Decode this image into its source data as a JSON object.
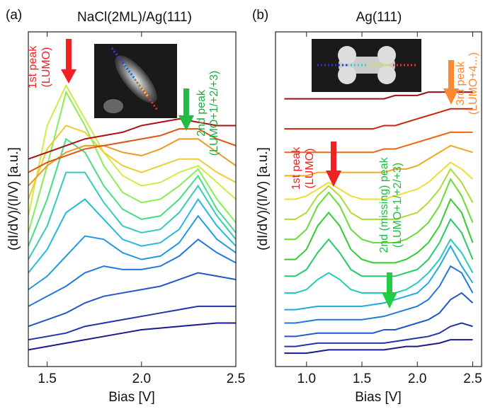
{
  "chart_data": [
    {
      "type": "line",
      "panel_label": "(a)",
      "title": "NaCl(2ML)/Ag(111)",
      "x_label": "Bias [V]",
      "y_label": "(dI/dV)/(I/V) [a.u.]",
      "annotations": [
        "1st peak",
        "(LUMO)",
        "2nd peak",
        "(LUMO+1/+2/+3)"
      ],
      "xlim": [
        1.4,
        2.5
      ],
      "ylim": [
        0,
        100
      ],
      "xticks": [
        1.5,
        {
          "value": 2,
          "label": "2.0"
        },
        2.5
      ],
      "x": [
        1.4,
        1.5,
        1.6,
        1.7,
        1.8,
        1.9,
        2.0,
        2.1,
        2.2,
        2.3,
        2.4,
        2.5
      ],
      "series": [
        {
          "color": "#1a1a8c",
          "values": [
            5,
            6,
            7,
            8,
            9,
            10,
            11,
            11.5,
            12,
            12.5,
            13,
            13
          ]
        },
        {
          "color": "#2233aa",
          "values": [
            8,
            9,
            10,
            12,
            13,
            14,
            15,
            16,
            17,
            18,
            18,
            18
          ]
        },
        {
          "color": "#2255cc",
          "values": [
            12,
            14,
            16,
            19,
            21,
            22,
            23,
            24,
            26,
            28,
            27,
            26
          ]
        },
        {
          "color": "#2277dd",
          "values": [
            18,
            21,
            24,
            28,
            30,
            29,
            29,
            30,
            33,
            38,
            34,
            31
          ]
        },
        {
          "color": "#2299dd",
          "values": [
            23,
            27,
            33,
            39,
            38,
            34,
            32,
            33,
            37,
            45,
            38,
            34
          ]
        },
        {
          "color": "#22bbdd",
          "values": [
            28,
            35,
            46,
            50,
            44,
            38,
            36,
            37,
            41,
            50,
            42,
            36
          ]
        },
        {
          "color": "#33ccbb",
          "values": [
            32,
            42,
            58,
            58,
            49,
            42,
            40,
            41,
            46,
            54,
            45,
            38
          ]
        },
        {
          "color": "#44dd88",
          "values": [
            36,
            50,
            68,
            64,
            54,
            47,
            44,
            45,
            50,
            57,
            47,
            40
          ]
        },
        {
          "color": "#88ee55",
          "values": [
            40,
            60,
            82,
            72,
            60,
            52,
            49,
            50,
            54,
            59,
            50,
            43
          ]
        },
        {
          "color": "#ccee44",
          "values": [
            45,
            72,
            84,
            74,
            64,
            57,
            54,
            55,
            58,
            60,
            55,
            50
          ]
        },
        {
          "color": "#eecc33",
          "values": [
            50,
            65,
            72,
            70,
            64,
            60,
            58,
            60,
            62,
            62,
            58,
            55
          ]
        },
        {
          "color": "#ee9922",
          "values": [
            54,
            60,
            64,
            66,
            66,
            64,
            63,
            65,
            68,
            68,
            64,
            60
          ]
        },
        {
          "color": "#dd5511",
          "values": [
            58,
            61,
            63,
            65,
            66,
            67,
            68,
            69,
            71,
            71,
            68,
            66
          ]
        },
        {
          "color": "#aa1111",
          "values": [
            62,
            64,
            66,
            68,
            69,
            70,
            72,
            73,
            74,
            73,
            72,
            72
          ]
        }
      ]
    },
    {
      "type": "line",
      "panel_label": "(b)",
      "title": "Ag(111)",
      "x_label": "Bias [V]",
      "y_label": "(dI/dV)/(I/V) [a.u.]",
      "annotations": [
        "1st peak",
        "(LUMO)",
        "2nd (missing) peak",
        "(LUMO+1/+2/+3)",
        "3rd peak",
        "(LUMO+4...)"
      ],
      "xlim": [
        0.72,
        2.58
      ],
      "ylim": [
        0,
        100
      ],
      "xticks": [
        {
          "value": 1,
          "label": "1.0"
        },
        1.5,
        {
          "value": 2,
          "label": "2.0"
        },
        2.5
      ],
      "x": [
        0.8,
        0.9,
        1.0,
        1.1,
        1.2,
        1.3,
        1.4,
        1.5,
        1.6,
        1.7,
        1.8,
        1.9,
        2.0,
        2.1,
        2.2,
        2.3,
        2.4,
        2.5
      ],
      "series": [
        {
          "color": "#1a1a8c",
          "values": [
            4,
            4,
            4,
            4.5,
            5,
            5,
            5,
            5,
            5,
            5,
            5.5,
            6,
            6,
            6.5,
            7,
            8,
            8,
            8
          ]
        },
        {
          "color": "#2233aa",
          "values": [
            6,
            6,
            6.5,
            7,
            7,
            7,
            7,
            7,
            7,
            7,
            7.5,
            8,
            8.5,
            9,
            10,
            12,
            13,
            12
          ]
        },
        {
          "color": "#2255cc",
          "values": [
            9,
            9,
            9.5,
            10,
            10,
            10,
            10,
            10,
            10,
            11,
            11,
            12,
            13,
            14,
            16,
            20,
            22,
            19
          ]
        },
        {
          "color": "#2277dd",
          "values": [
            13,
            13,
            13.5,
            14,
            14,
            14,
            14,
            14,
            14.5,
            15,
            16,
            17,
            18,
            20,
            24,
            30,
            28,
            22
          ]
        },
        {
          "color": "#22aadd",
          "values": [
            17,
            17,
            17.5,
            18,
            18,
            18,
            18,
            18,
            18.5,
            19,
            20,
            21,
            22,
            25,
            30,
            36,
            30,
            25
          ]
        },
        {
          "color": "#22ccbb",
          "values": [
            22,
            22,
            23,
            26,
            28,
            26,
            23,
            22,
            22,
            22,
            22,
            23,
            25,
            28,
            32,
            38,
            34,
            28
          ]
        },
        {
          "color": "#22cc66",
          "values": [
            27,
            27,
            29,
            34,
            38,
            34,
            29,
            27,
            27,
            27,
            27,
            28,
            29,
            32,
            37,
            44,
            40,
            32
          ]
        },
        {
          "color": "#33cc33",
          "values": [
            32,
            32,
            35,
            42,
            46,
            42,
            35,
            32,
            31,
            31,
            31,
            32,
            34,
            37,
            42,
            50,
            46,
            37
          ]
        },
        {
          "color": "#66dd33",
          "values": [
            38,
            38,
            41,
            48,
            52,
            48,
            41,
            38,
            37,
            37,
            37,
            38,
            40,
            43,
            48,
            56,
            51,
            43
          ]
        },
        {
          "color": "#aadd33",
          "values": [
            44,
            44,
            46,
            51,
            54,
            51,
            46,
            44,
            44,
            44,
            44,
            45,
            46,
            49,
            53,
            59,
            55,
            49
          ]
        },
        {
          "color": "#eedd33",
          "values": [
            50,
            50,
            51,
            53,
            55,
            53,
            51,
            50,
            50,
            50,
            51,
            52,
            53,
            55,
            58,
            61,
            59,
            56
          ]
        },
        {
          "color": "#eeaa22",
          "values": [
            57,
            57,
            57,
            58,
            58,
            58,
            58,
            58,
            58,
            58,
            59,
            59,
            60,
            62,
            64,
            66,
            65,
            64
          ]
        },
        {
          "color": "#ee6611",
          "values": [
            64,
            64,
            64,
            64,
            64,
            64,
            64,
            64,
            64,
            65,
            65,
            66,
            67,
            68,
            69,
            70,
            70,
            70
          ]
        },
        {
          "color": "#cc2211",
          "values": [
            71,
            71,
            71,
            71,
            71,
            71,
            71,
            71,
            71,
            72,
            72,
            73,
            74,
            75,
            76,
            77,
            77,
            77
          ]
        },
        {
          "color": "#991111",
          "values": [
            80,
            80,
            80,
            80,
            80,
            80,
            80,
            80,
            80,
            80,
            81,
            81,
            81,
            82,
            82,
            82,
            82,
            82
          ]
        }
      ]
    }
  ]
}
